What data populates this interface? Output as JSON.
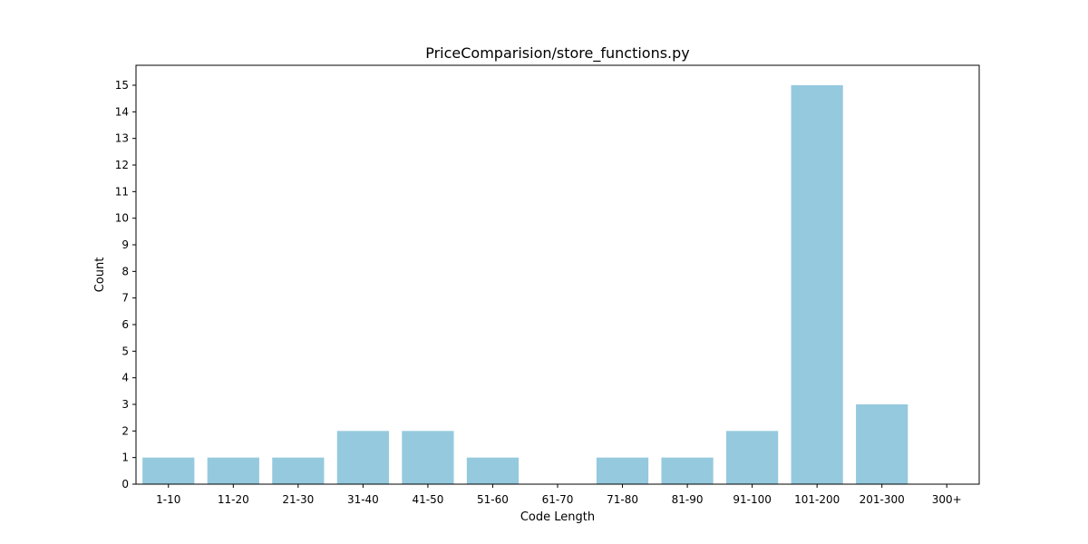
{
  "chart_data": {
    "type": "bar",
    "title": "PriceComparision/store_functions.py",
    "xlabel": "Code Length",
    "ylabel": "Count",
    "categories": [
      "1-10",
      "11-20",
      "21-30",
      "31-40",
      "41-50",
      "51-60",
      "61-70",
      "71-80",
      "81-90",
      "91-100",
      "101-200",
      "201-300",
      "300+"
    ],
    "values": [
      1,
      1,
      1,
      2,
      2,
      1,
      0,
      1,
      1,
      2,
      15,
      3,
      0
    ],
    "ylim": [
      0,
      15.75
    ],
    "yticks": [
      0,
      1,
      2,
      3,
      4,
      5,
      6,
      7,
      8,
      9,
      10,
      11,
      12,
      13,
      14,
      15
    ],
    "grid": false,
    "bar_color": "#95c9de"
  }
}
